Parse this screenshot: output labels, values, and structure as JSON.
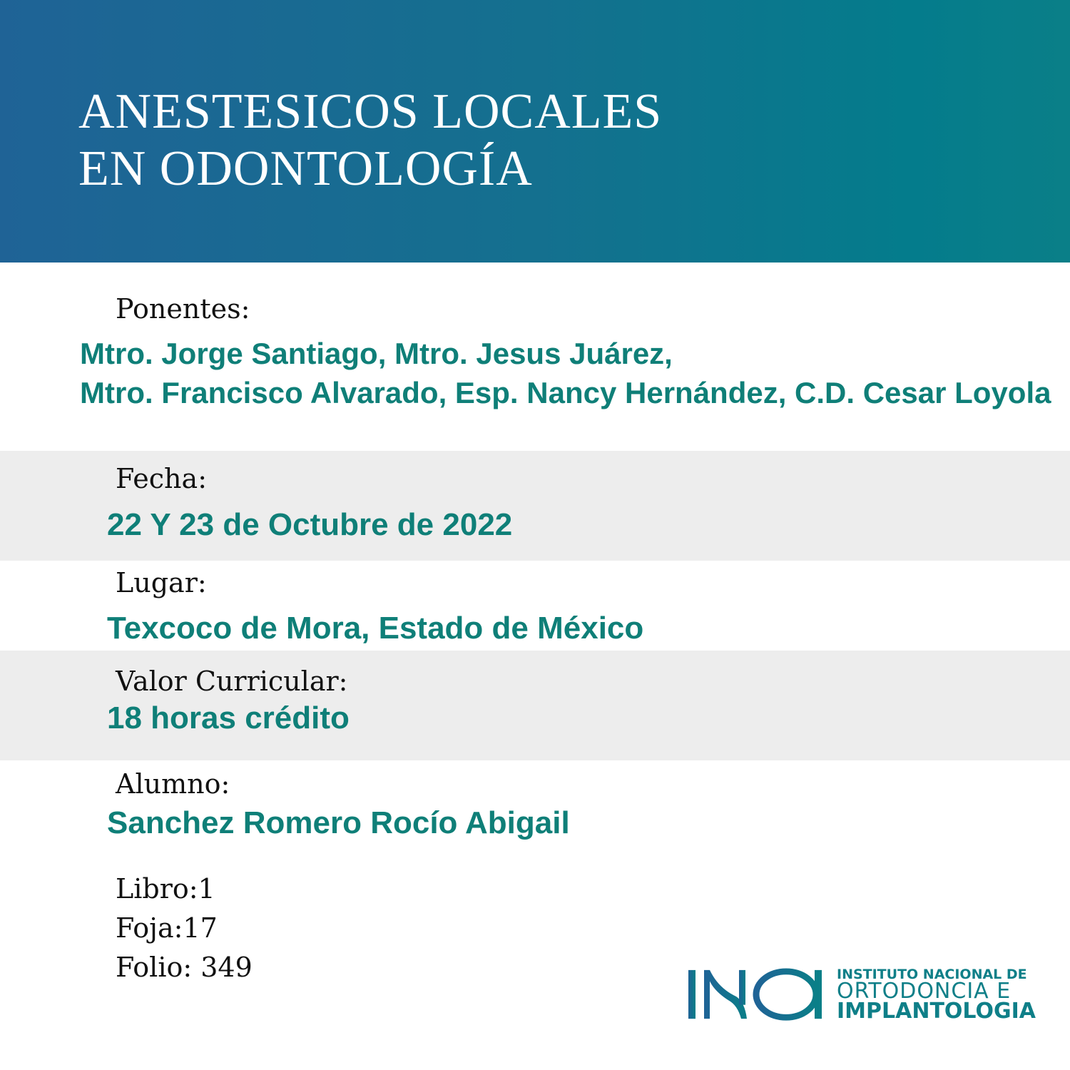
{
  "header": {
    "title_line1": "ANESTESICOS LOCALES",
    "title_line2": "EN ODONTOLOGÍA"
  },
  "ponentes": {
    "label": "Ponentes:",
    "line1": "Mtro. Jorge Santiago, Mtro. Jesus Juárez,",
    "line2": "Mtro. Francisco Alvarado, Esp. Nancy Hernández, C.D. Cesar Loyola"
  },
  "fecha": {
    "label": "Fecha:",
    "value": "22 Y 23 de Octubre de 2022"
  },
  "lugar": {
    "label": "Lugar:",
    "value": "Texcoco de Mora, Estado de México"
  },
  "valor": {
    "label": "Valor Curricular:",
    "value": "18 horas crédito"
  },
  "alumno": {
    "label": "Alumno:",
    "value": "Sanchez Romero Rocío Abigail"
  },
  "registro": {
    "libro": "Libro:1",
    "foja": "Foja:17",
    "folio": "Folio: 349"
  },
  "logo": {
    "mark": "INOI",
    "line1": "INSTITUTO NACIONAL DE",
    "line2": "ORTODONCIA E",
    "line3": "IMPLANTOLOGIA"
  },
  "colors": {
    "header_start": "#1f6396",
    "header_end": "#047c8c",
    "accent_text": "#0f7f78",
    "band": "#ededed"
  }
}
